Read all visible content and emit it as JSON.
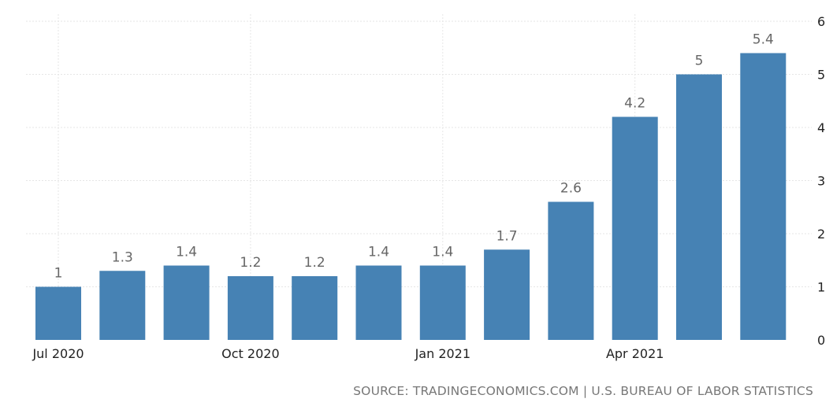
{
  "chart_data": {
    "type": "bar",
    "categories": [
      "2020-07",
      "2020-08",
      "2020-09",
      "2020-10",
      "2020-11",
      "2020-12",
      "2021-01",
      "2021-02",
      "2021-03",
      "2021-04",
      "2021-05",
      "2021-06"
    ],
    "values": [
      1,
      1.3,
      1.4,
      1.2,
      1.2,
      1.4,
      1.4,
      1.7,
      2.6,
      4.2,
      5,
      5.4
    ],
    "data_labels": [
      "1",
      "1.3",
      "1.4",
      "1.2",
      "1.2",
      "1.4",
      "1.4",
      "1.7",
      "2.6",
      "4.2",
      "5",
      "5.4"
    ],
    "x_tick_labels": [
      {
        "category": "2020-07",
        "label": "Jul 2020"
      },
      {
        "category": "2020-10",
        "label": "Oct 2020"
      },
      {
        "category": "2021-01",
        "label": "Jan 2021"
      },
      {
        "category": "2021-04",
        "label": "Apr 2021"
      }
    ],
    "y_ticks": [
      0,
      1,
      2,
      3,
      4,
      5,
      6
    ],
    "ylim": [
      0,
      6
    ],
    "y_axis_position": "right",
    "grid": true,
    "bar_color": "#4682b4",
    "title": "",
    "xlabel": "",
    "ylabel": ""
  },
  "source_text": "SOURCE: TRADINGECONOMICS.COM | U.S. BUREAU OF LABOR STATISTICS"
}
